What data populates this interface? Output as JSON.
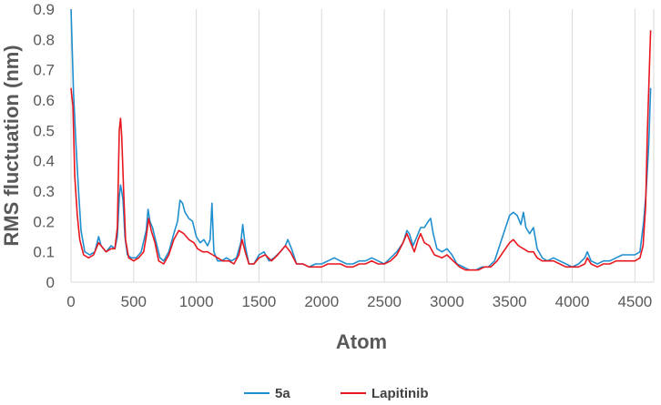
{
  "chart_data": {
    "type": "line",
    "title": "",
    "xlabel": "Atom",
    "ylabel": "RMS fluctuation (nm)",
    "xlim": [
      0,
      4650
    ],
    "ylim": [
      0,
      0.9
    ],
    "x_ticks": [
      0,
      500,
      1000,
      1500,
      2000,
      2500,
      3000,
      3500,
      4000,
      4500
    ],
    "y_ticks": [
      0,
      0.1,
      0.2,
      0.3,
      0.4,
      0.5,
      0.6,
      0.7,
      0.8,
      0.9
    ],
    "x_tick_labels": [
      "0",
      "500",
      "1000",
      "1500",
      "2000",
      "2500",
      "3000",
      "3500",
      "4000",
      "4500"
    ],
    "y_tick_labels": [
      "0",
      "0.1",
      "0.2",
      "0.3",
      "0.4",
      "0.5",
      "0.6",
      "0.7",
      "0.8",
      "0.9"
    ],
    "grid": "vertical",
    "legend_position": "bottom",
    "series": [
      {
        "name": "5a",
        "color": "#1f8fcf",
        "points": [
          [
            0,
            0.9
          ],
          [
            20,
            0.62
          ],
          [
            40,
            0.45
          ],
          [
            60,
            0.3
          ],
          [
            80,
            0.17
          ],
          [
            110,
            0.1
          ],
          [
            150,
            0.09
          ],
          [
            190,
            0.1
          ],
          [
            220,
            0.15
          ],
          [
            240,
            0.12
          ],
          [
            280,
            0.1
          ],
          [
            320,
            0.12
          ],
          [
            350,
            0.11
          ],
          [
            370,
            0.15
          ],
          [
            385,
            0.28
          ],
          [
            395,
            0.32
          ],
          [
            405,
            0.3
          ],
          [
            415,
            0.27
          ],
          [
            430,
            0.15
          ],
          [
            450,
            0.09
          ],
          [
            480,
            0.08
          ],
          [
            520,
            0.08
          ],
          [
            560,
            0.1
          ],
          [
            600,
            0.17
          ],
          [
            615,
            0.24
          ],
          [
            630,
            0.2
          ],
          [
            650,
            0.18
          ],
          [
            680,
            0.13
          ],
          [
            710,
            0.08
          ],
          [
            740,
            0.07
          ],
          [
            780,
            0.1
          ],
          [
            820,
            0.16
          ],
          [
            850,
            0.2
          ],
          [
            870,
            0.27
          ],
          [
            890,
            0.26
          ],
          [
            910,
            0.23
          ],
          [
            940,
            0.21
          ],
          [
            970,
            0.2
          ],
          [
            1000,
            0.15
          ],
          [
            1030,
            0.13
          ],
          [
            1060,
            0.14
          ],
          [
            1090,
            0.12
          ],
          [
            1110,
            0.14
          ],
          [
            1125,
            0.26
          ],
          [
            1140,
            0.1
          ],
          [
            1170,
            0.07
          ],
          [
            1200,
            0.07
          ],
          [
            1240,
            0.08
          ],
          [
            1280,
            0.07
          ],
          [
            1320,
            0.08
          ],
          [
            1355,
            0.13
          ],
          [
            1370,
            0.19
          ],
          [
            1390,
            0.12
          ],
          [
            1420,
            0.06
          ],
          [
            1460,
            0.06
          ],
          [
            1500,
            0.09
          ],
          [
            1540,
            0.1
          ],
          [
            1580,
            0.07
          ],
          [
            1620,
            0.08
          ],
          [
            1670,
            0.1
          ],
          [
            1710,
            0.12
          ],
          [
            1730,
            0.14
          ],
          [
            1760,
            0.11
          ],
          [
            1800,
            0.06
          ],
          [
            1850,
            0.06
          ],
          [
            1900,
            0.05
          ],
          [
            1950,
            0.06
          ],
          [
            2000,
            0.06
          ],
          [
            2050,
            0.07
          ],
          [
            2100,
            0.08
          ],
          [
            2150,
            0.07
          ],
          [
            2200,
            0.06
          ],
          [
            2250,
            0.06
          ],
          [
            2300,
            0.07
          ],
          [
            2350,
            0.07
          ],
          [
            2400,
            0.08
          ],
          [
            2450,
            0.07
          ],
          [
            2500,
            0.06
          ],
          [
            2550,
            0.08
          ],
          [
            2600,
            0.1
          ],
          [
            2650,
            0.13
          ],
          [
            2680,
            0.17
          ],
          [
            2700,
            0.16
          ],
          [
            2730,
            0.12
          ],
          [
            2760,
            0.15
          ],
          [
            2790,
            0.18
          ],
          [
            2820,
            0.18
          ],
          [
            2850,
            0.2
          ],
          [
            2870,
            0.21
          ],
          [
            2890,
            0.16
          ],
          [
            2920,
            0.11
          ],
          [
            2960,
            0.1
          ],
          [
            3000,
            0.11
          ],
          [
            3040,
            0.09
          ],
          [
            3080,
            0.06
          ],
          [
            3130,
            0.05
          ],
          [
            3180,
            0.04
          ],
          [
            3230,
            0.04
          ],
          [
            3280,
            0.05
          ],
          [
            3330,
            0.05
          ],
          [
            3380,
            0.07
          ],
          [
            3420,
            0.12
          ],
          [
            3460,
            0.17
          ],
          [
            3500,
            0.22
          ],
          [
            3530,
            0.23
          ],
          [
            3560,
            0.22
          ],
          [
            3590,
            0.19
          ],
          [
            3610,
            0.23
          ],
          [
            3630,
            0.18
          ],
          [
            3660,
            0.16
          ],
          [
            3690,
            0.18
          ],
          [
            3720,
            0.11
          ],
          [
            3760,
            0.08
          ],
          [
            3800,
            0.07
          ],
          [
            3850,
            0.08
          ],
          [
            3900,
            0.07
          ],
          [
            3950,
            0.06
          ],
          [
            4000,
            0.05
          ],
          [
            4050,
            0.06
          ],
          [
            4100,
            0.08
          ],
          [
            4120,
            0.1
          ],
          [
            4150,
            0.07
          ],
          [
            4200,
            0.06
          ],
          [
            4250,
            0.07
          ],
          [
            4300,
            0.07
          ],
          [
            4350,
            0.08
          ],
          [
            4400,
            0.09
          ],
          [
            4450,
            0.09
          ],
          [
            4500,
            0.09
          ],
          [
            4540,
            0.1
          ],
          [
            4570,
            0.2
          ],
          [
            4590,
            0.3
          ],
          [
            4610,
            0.45
          ],
          [
            4625,
            0.64
          ]
        ]
      },
      {
        "name": "Lapitinib",
        "color": "#e8171f",
        "points": [
          [
            0,
            0.64
          ],
          [
            15,
            0.58
          ],
          [
            30,
            0.35
          ],
          [
            50,
            0.22
          ],
          [
            70,
            0.14
          ],
          [
            100,
            0.09
          ],
          [
            140,
            0.08
          ],
          [
            180,
            0.09
          ],
          [
            220,
            0.13
          ],
          [
            240,
            0.12
          ],
          [
            280,
            0.1
          ],
          [
            320,
            0.11
          ],
          [
            350,
            0.11
          ],
          [
            370,
            0.18
          ],
          [
            385,
            0.5
          ],
          [
            395,
            0.54
          ],
          [
            405,
            0.48
          ],
          [
            420,
            0.3
          ],
          [
            435,
            0.14
          ],
          [
            460,
            0.08
          ],
          [
            500,
            0.07
          ],
          [
            540,
            0.08
          ],
          [
            580,
            0.1
          ],
          [
            600,
            0.15
          ],
          [
            620,
            0.21
          ],
          [
            640,
            0.17
          ],
          [
            670,
            0.13
          ],
          [
            700,
            0.07
          ],
          [
            740,
            0.06
          ],
          [
            780,
            0.09
          ],
          [
            820,
            0.14
          ],
          [
            860,
            0.17
          ],
          [
            900,
            0.16
          ],
          [
            940,
            0.14
          ],
          [
            980,
            0.13
          ],
          [
            1010,
            0.11
          ],
          [
            1050,
            0.1
          ],
          [
            1090,
            0.1
          ],
          [
            1130,
            0.09
          ],
          [
            1170,
            0.08
          ],
          [
            1210,
            0.07
          ],
          [
            1260,
            0.07
          ],
          [
            1300,
            0.06
          ],
          [
            1340,
            0.09
          ],
          [
            1365,
            0.14
          ],
          [
            1390,
            0.1
          ],
          [
            1420,
            0.06
          ],
          [
            1460,
            0.06
          ],
          [
            1500,
            0.08
          ],
          [
            1550,
            0.09
          ],
          [
            1600,
            0.07
          ],
          [
            1650,
            0.09
          ],
          [
            1710,
            0.12
          ],
          [
            1750,
            0.1
          ],
          [
            1800,
            0.06
          ],
          [
            1850,
            0.06
          ],
          [
            1900,
            0.05
          ],
          [
            1950,
            0.05
          ],
          [
            2000,
            0.05
          ],
          [
            2050,
            0.06
          ],
          [
            2100,
            0.06
          ],
          [
            2150,
            0.06
          ],
          [
            2200,
            0.05
          ],
          [
            2250,
            0.05
          ],
          [
            2300,
            0.06
          ],
          [
            2350,
            0.06
          ],
          [
            2400,
            0.07
          ],
          [
            2450,
            0.06
          ],
          [
            2500,
            0.06
          ],
          [
            2550,
            0.07
          ],
          [
            2600,
            0.09
          ],
          [
            2650,
            0.13
          ],
          [
            2680,
            0.16
          ],
          [
            2710,
            0.13
          ],
          [
            2740,
            0.1
          ],
          [
            2770,
            0.14
          ],
          [
            2790,
            0.16
          ],
          [
            2820,
            0.13
          ],
          [
            2860,
            0.12
          ],
          [
            2900,
            0.09
          ],
          [
            2960,
            0.08
          ],
          [
            3000,
            0.09
          ],
          [
            3050,
            0.07
          ],
          [
            3100,
            0.05
          ],
          [
            3150,
            0.04
          ],
          [
            3200,
            0.04
          ],
          [
            3250,
            0.04
          ],
          [
            3300,
            0.05
          ],
          [
            3350,
            0.05
          ],
          [
            3400,
            0.07
          ],
          [
            3450,
            0.1
          ],
          [
            3500,
            0.13
          ],
          [
            3530,
            0.14
          ],
          [
            3570,
            0.12
          ],
          [
            3610,
            0.11
          ],
          [
            3650,
            0.1
          ],
          [
            3690,
            0.1
          ],
          [
            3720,
            0.08
          ],
          [
            3760,
            0.07
          ],
          [
            3800,
            0.07
          ],
          [
            3850,
            0.07
          ],
          [
            3900,
            0.06
          ],
          [
            3950,
            0.05
          ],
          [
            4000,
            0.05
          ],
          [
            4050,
            0.05
          ],
          [
            4100,
            0.06
          ],
          [
            4120,
            0.08
          ],
          [
            4150,
            0.06
          ],
          [
            4200,
            0.05
          ],
          [
            4250,
            0.06
          ],
          [
            4300,
            0.06
          ],
          [
            4350,
            0.07
          ],
          [
            4400,
            0.07
          ],
          [
            4450,
            0.07
          ],
          [
            4500,
            0.07
          ],
          [
            4540,
            0.08
          ],
          [
            4565,
            0.12
          ],
          [
            4585,
            0.25
          ],
          [
            4600,
            0.5
          ],
          [
            4615,
            0.7
          ],
          [
            4625,
            0.83
          ]
        ]
      }
    ]
  }
}
